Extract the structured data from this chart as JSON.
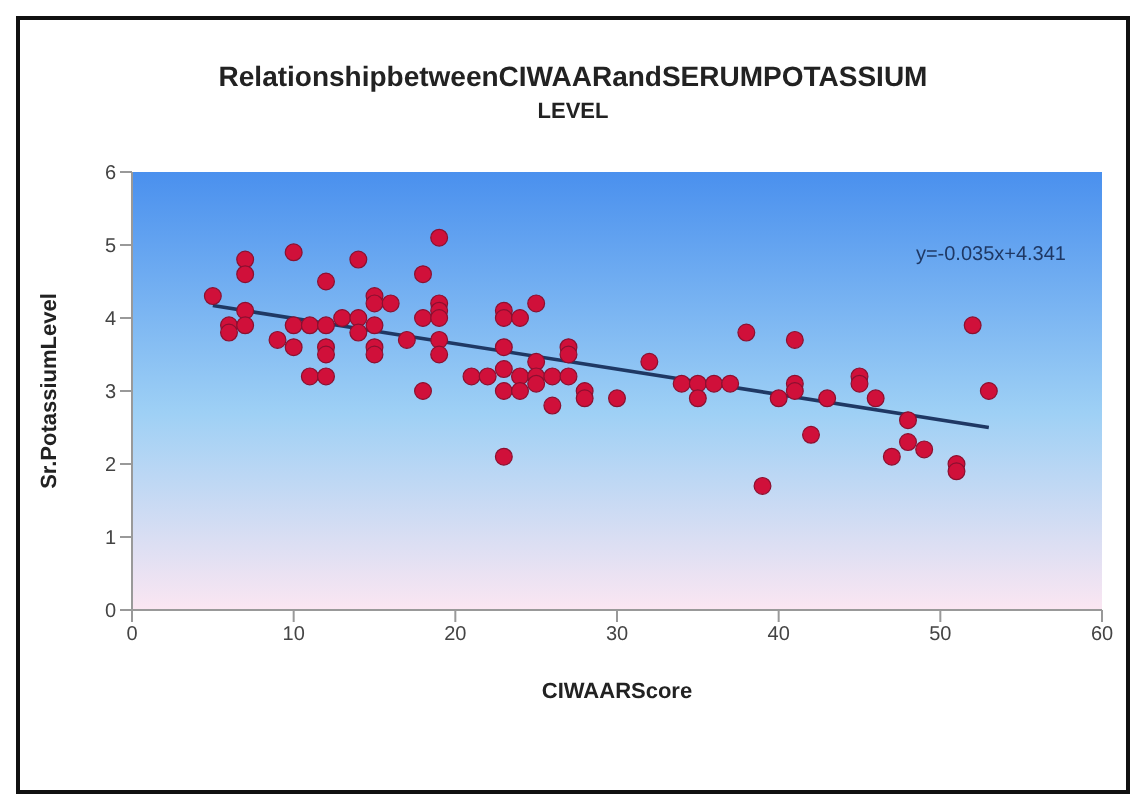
{
  "chart_data": {
    "type": "scatter",
    "title": "RelationshipbetweenCIWAARandSERUMPOTASSIUM",
    "subtitle": "LEVEL",
    "xlabel": "CIWAARScore",
    "ylabel": "Sr.PotassiumLevel",
    "xlim": [
      0,
      60
    ],
    "xticks": [
      0,
      10,
      20,
      30,
      40,
      50,
      60
    ],
    "ylim": [
      0,
      6
    ],
    "yticks": [
      0,
      1,
      2,
      3,
      4,
      5,
      6
    ],
    "marker": "circle",
    "annotations": [
      "y=-0.035x+4.341"
    ],
    "series": [
      {
        "color": "#d0103a",
        "x": [
          5,
          6,
          6,
          7,
          7,
          7,
          7,
          9,
          10,
          10,
          10,
          11,
          11,
          12,
          12,
          12,
          12,
          12,
          13,
          14,
          14,
          14,
          15,
          15,
          15,
          15,
          15,
          16,
          17,
          18,
          18,
          18,
          19,
          19,
          19,
          19,
          19,
          19,
          21,
          22,
          23,
          23,
          23,
          23,
          23,
          23,
          24,
          24,
          24,
          25,
          25,
          25,
          25,
          26,
          26,
          27,
          27,
          27,
          28,
          28,
          30,
          32,
          34,
          35,
          35,
          36,
          37,
          38,
          39,
          40,
          41,
          41,
          41,
          42,
          43,
          45,
          45,
          46,
          47,
          48,
          48,
          49,
          51,
          51,
          52,
          53
        ],
        "values": [
          4.3,
          3.9,
          3.8,
          4.8,
          4.6,
          4.1,
          3.9,
          3.7,
          4.9,
          3.6,
          3.9,
          3.9,
          3.2,
          4.5,
          3.9,
          3.6,
          3.5,
          3.2,
          4.0,
          4.8,
          4.0,
          3.8,
          4.3,
          4.2,
          3.9,
          3.6,
          3.5,
          4.2,
          3.7,
          4.6,
          4.0,
          3.0,
          5.1,
          4.2,
          4.1,
          4.0,
          3.7,
          3.5,
          3.2,
          3.2,
          4.1,
          4.0,
          3.6,
          3.3,
          3.0,
          2.1,
          4.0,
          3.2,
          3.0,
          4.2,
          3.4,
          3.2,
          3.1,
          3.2,
          2.8,
          3.6,
          3.5,
          3.2,
          3.0,
          2.9,
          2.9,
          3.4,
          3.1,
          3.1,
          2.9,
          3.1,
          3.1,
          3.8,
          1.7,
          2.9,
          3.7,
          3.1,
          3.0,
          2.4,
          2.9,
          3.2,
          3.1,
          2.9,
          2.1,
          2.6,
          2.3,
          2.2,
          2.0,
          1.9,
          3.9,
          3.0
        ]
      },
      {
        "type": "line",
        "color": "#1f3864",
        "x": [
          5,
          53
        ],
        "values": [
          4.17,
          2.5
        ],
        "marker": "none",
        "line_style": "solid"
      }
    ]
  }
}
